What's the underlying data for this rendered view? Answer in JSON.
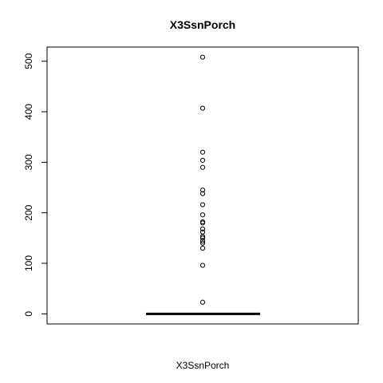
{
  "chart_data": {
    "type": "boxplot",
    "title": "X3SsnPorch",
    "xlabel": "X3SsnPorch",
    "ylabel": "",
    "ylim": [
      -20,
      528
    ],
    "yticks": [
      0,
      100,
      200,
      300,
      400,
      500
    ],
    "grid": false,
    "box": {
      "min": 0,
      "q1": 0,
      "median": 0,
      "q3": 0,
      "max": 0
    },
    "outliers": [
      508,
      407,
      320,
      304,
      290,
      245,
      238,
      216,
      196,
      182,
      180,
      168,
      162,
      153,
      150,
      144,
      140,
      130,
      96,
      23
    ]
  }
}
